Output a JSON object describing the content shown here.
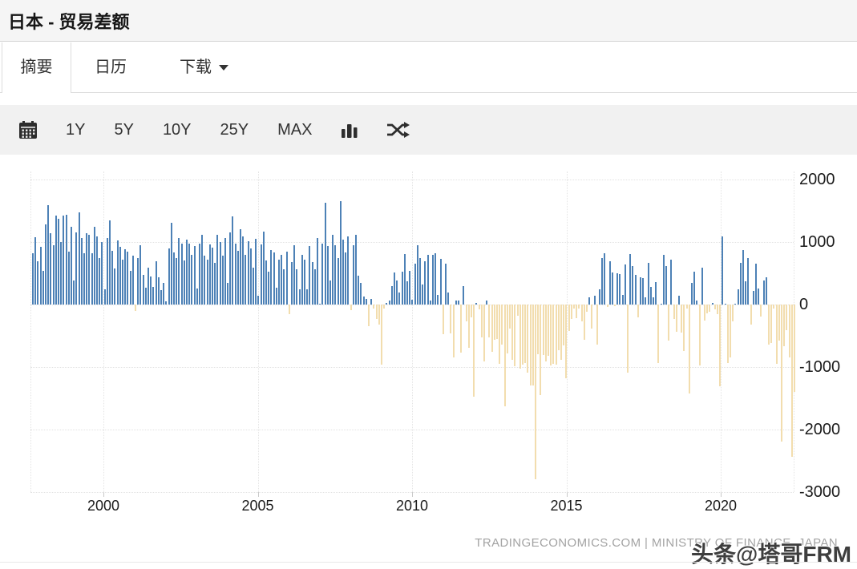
{
  "header": {
    "title": "日本 - 贸易差额"
  },
  "tabs": [
    {
      "label": "摘要",
      "active": true
    },
    {
      "label": "日历",
      "active": false
    },
    {
      "label": "下载",
      "active": false,
      "has_dropdown": true
    }
  ],
  "toolbar": {
    "ranges": [
      "1Y",
      "5Y",
      "10Y",
      "25Y",
      "MAX"
    ],
    "icons": [
      "calendar-icon",
      "bar-chart-icon",
      "shuffle-icon"
    ]
  },
  "footer": {
    "source": "TRADINGECONOMICS.COM | MINISTRY OF FINANCE, JAPAN"
  },
  "watermark": {
    "text": "头条@塔哥FRM"
  },
  "colors": {
    "bar_positive": "#4d81b6",
    "bar_negative": "#f2ddae",
    "toolbar_bg": "#f1f1f1",
    "titlebar_bg": "#f5f5f5",
    "gridline": "#e2e2e2",
    "axis_text": "#1b1b1b",
    "source_text": "#a3a3a3"
  },
  "chart_data": {
    "type": "bar",
    "title": "日本 - 贸易差额",
    "frequency": "monthly",
    "x_start": "1997-09",
    "x_end": "2022-06",
    "ylim": [
      -3000,
      2000
    ],
    "grid": true,
    "legend": "none",
    "y_ticks": [
      2000,
      1000,
      0,
      -1000,
      -2000,
      -3000
    ],
    "y_tick_labels": [
      "2000",
      "1000",
      "0",
      "-1000",
      "-2000",
      "-3000"
    ],
    "x_ticks": [
      2000,
      2005,
      2010,
      2015,
      2020
    ],
    "x_tick_labels": [
      "2000",
      "2005",
      "2010",
      "2015",
      "2020"
    ],
    "positive_color": "#4d81b6",
    "negative_color": "#f2ddae",
    "values": [
      820,
      1080,
      690,
      920,
      540,
      1280,
      1590,
      1140,
      950,
      1420,
      1370,
      1000,
      1420,
      1440,
      840,
      1250,
      380,
      1160,
      1480,
      1070,
      820,
      1140,
      1110,
      820,
      1250,
      1090,
      740,
      1000,
      240,
      1070,
      1350,
      860,
      580,
      1030,
      920,
      720,
      890,
      850,
      540,
      780,
      -100,
      750,
      950,
      480,
      270,
      590,
      450,
      280,
      690,
      440,
      230,
      350,
      50,
      900,
      1310,
      830,
      750,
      1060,
      980,
      700,
      1040,
      980,
      800,
      930,
      260,
      980,
      1110,
      780,
      720,
      960,
      910,
      670,
      1110,
      1000,
      780,
      1060,
      340,
      1150,
      1410,
      970,
      860,
      1210,
      1090,
      790,
      1010,
      900,
      590,
      1050,
      140,
      960,
      1170,
      700,
      530,
      870,
      830,
      270,
      720,
      790,
      560,
      850,
      -150,
      680,
      950,
      560,
      240,
      790,
      720,
      240,
      930,
      680,
      560,
      1060,
      0,
      970,
      1630,
      930,
      380,
      1110,
      950,
      740,
      1650,
      1040,
      830,
      1090,
      -90,
      950,
      1120,
      460,
      340,
      130,
      90,
      -340,
      90,
      -70,
      -230,
      -320,
      -960,
      -60,
      20,
      70,
      300,
      510,
      380,
      190,
      530,
      810,
      370,
      540,
      80,
      650,
      950,
      740,
      320,
      690,
      800,
      60,
      790,
      820,
      160,
      730,
      -470,
      650,
      190,
      -460,
      -850,
      70,
      70,
      -770,
      300,
      -270,
      -690,
      -210,
      -1480,
      30,
      -80,
      -520,
      -910,
      60,
      -520,
      -750,
      -560,
      -550,
      -950,
      -640,
      -1630,
      -780,
      -380,
      -880,
      -990,
      -180,
      -1030,
      -960,
      -930,
      -1090,
      -1290,
      -1300,
      -2790,
      -800,
      -1450,
      -810,
      -910,
      -820,
      -970,
      -950,
      -960,
      -730,
      -890,
      -660,
      -1180,
      -420,
      -230,
      -60,
      -220,
      -70,
      -270,
      -570,
      -110,
      110,
      -380,
      140,
      -640,
      240,
      750,
      820,
      -40,
      690,
      510,
      -20,
      500,
      490,
      150,
      640,
      -1090,
      810,
      610,
      480,
      -200,
      440,
      420,
      110,
      670,
      280,
      110,
      360,
      -940,
      0,
      800,
      620,
      -580,
      720,
      -230,
      -440,
      140,
      -450,
      -740,
      -60,
      -1420,
      340,
      530,
      60,
      -970,
      590,
      -250,
      -140,
      -120,
      20,
      -80,
      -150,
      -1310,
      1090,
      5,
      -930,
      -840,
      -270,
      10,
      250,
      670,
      870,
      370,
      750,
      -320,
      220,
      660,
      260,
      -190,
      390,
      440,
      -640,
      -620,
      -70,
      -950,
      -580,
      -2190,
      -670,
      -410,
      -840,
      -2430,
      -1400
    ]
  }
}
